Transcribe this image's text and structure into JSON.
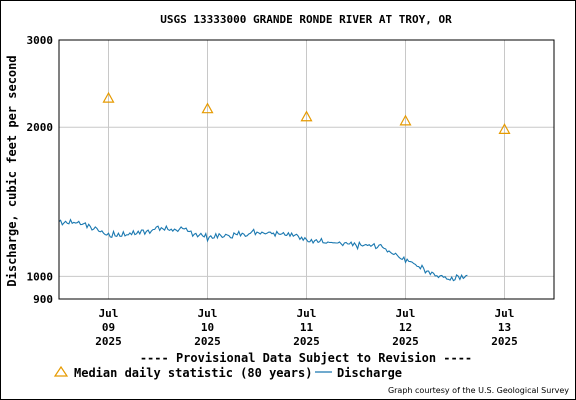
{
  "chart_data": {
    "type": "line",
    "title": "USGS 13333000 GRANDE RONDE RIVER AT TROY, OR",
    "ylabel": "Discharge, cubic feet per second",
    "xlabel": "",
    "y_scale": "log",
    "ylim": [
      900,
      3000
    ],
    "y_ticks": [
      "3000",
      "2000",
      "1000",
      "900"
    ],
    "y_tick_values": [
      3000,
      2000,
      1000,
      900
    ],
    "xlim": [
      "2025-07-08 12:00",
      "2025-07-13 12:00"
    ],
    "x_ticks": [
      {
        "at": "2025-07-09 00:00",
        "lines": [
          "Jul",
          "09",
          "2025"
        ]
      },
      {
        "at": "2025-07-10 00:00",
        "lines": [
          "Jul",
          "10",
          "2025"
        ]
      },
      {
        "at": "2025-07-11 00:00",
        "lines": [
          "Jul",
          "11",
          "2025"
        ]
      },
      {
        "at": "2025-07-12 00:00",
        "lines": [
          "Jul",
          "12",
          "2025"
        ]
      },
      {
        "at": "2025-07-13 00:00",
        "lines": [
          "Jul",
          "13",
          "2025"
        ]
      }
    ],
    "grid": true,
    "series": [
      {
        "name": "Median daily statistic (80 years)",
        "style": "triangle-markers",
        "color": "#e69a00",
        "points": [
          {
            "x": "2025-07-09 00:00",
            "y": 2290
          },
          {
            "x": "2025-07-10 00:00",
            "y": 2180
          },
          {
            "x": "2025-07-11 00:00",
            "y": 2100
          },
          {
            "x": "2025-07-12 00:00",
            "y": 2060
          },
          {
            "x": "2025-07-13 00:00",
            "y": 1980
          }
        ]
      },
      {
        "name": "Discharge",
        "style": "line",
        "color": "#1a78b0",
        "points": [
          {
            "x": "2025-07-08 12:00",
            "y": 1290
          },
          {
            "x": "2025-07-08 18:00",
            "y": 1280
          },
          {
            "x": "2025-07-09 00:00",
            "y": 1210
          },
          {
            "x": "2025-07-09 06:00",
            "y": 1220
          },
          {
            "x": "2025-07-09 12:00",
            "y": 1250
          },
          {
            "x": "2025-07-09 18:00",
            "y": 1240
          },
          {
            "x": "2025-07-10 00:00",
            "y": 1200
          },
          {
            "x": "2025-07-10 06:00",
            "y": 1210
          },
          {
            "x": "2025-07-10 12:00",
            "y": 1230
          },
          {
            "x": "2025-07-10 18:00",
            "y": 1225
          },
          {
            "x": "2025-07-11 00:00",
            "y": 1190
          },
          {
            "x": "2025-07-11 06:00",
            "y": 1165
          },
          {
            "x": "2025-07-11 12:00",
            "y": 1155
          },
          {
            "x": "2025-07-11 18:00",
            "y": 1150
          },
          {
            "x": "2025-07-12 00:00",
            "y": 1080
          },
          {
            "x": "2025-07-12 06:00",
            "y": 1020
          },
          {
            "x": "2025-07-12 10:00",
            "y": 990
          },
          {
            "x": "2025-07-12 14:00",
            "y": 1000
          },
          {
            "x": "2025-07-12 15:00",
            "y": 1005
          }
        ]
      }
    ]
  },
  "footer": {
    "provisional_note": "---- Provisional Data Subject to Revision ----",
    "provisional_color": "#ee0000",
    "legend_median": "Median daily statistic (80 years)",
    "legend_discharge": "Discharge",
    "credit": "Graph courtesy of the U.S. Geological Survey"
  }
}
